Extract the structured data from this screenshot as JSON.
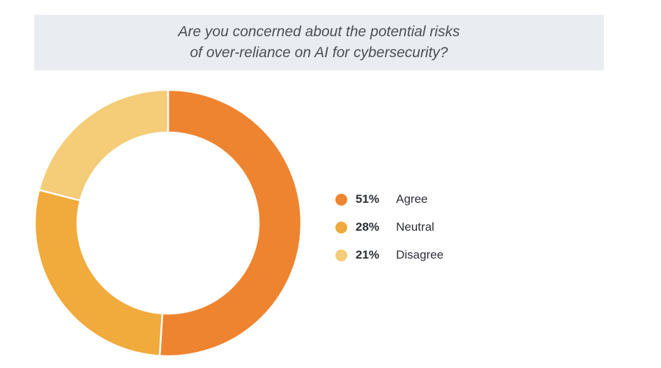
{
  "header": {
    "title_line1": "Are you concerned about the potential risks",
    "title_line2": "of over-reliance on AI for cybersecurity?"
  },
  "chart_data": {
    "type": "pie",
    "donut": true,
    "categories": [
      "Agree",
      "Neutral",
      "Disagree"
    ],
    "values": [
      51,
      28,
      21
    ],
    "value_labels": [
      "51%",
      "28%",
      "21%"
    ],
    "colors": [
      "#ef8430",
      "#f1aa3c",
      "#f5cc78"
    ],
    "title": "Are you concerned about the potential risks of over-reliance on AI for cybersecurity?",
    "legend_position": "right"
  }
}
